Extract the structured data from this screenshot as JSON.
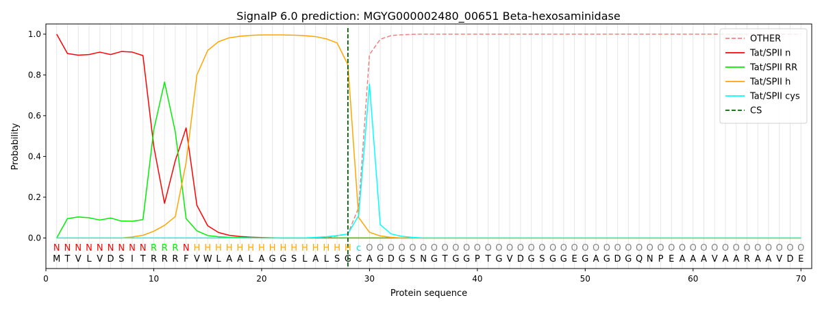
{
  "chart_data": {
    "type": "line",
    "title": "SignalP 6.0 prediction: MGYG000002480_00651 Beta-hexosaminidase",
    "xlabel": "Protein sequence",
    "ylabel": "Probability",
    "xlim": [
      0,
      71
    ],
    "ylim": [
      -0.15,
      1.05
    ],
    "xticks": [
      0,
      10,
      20,
      30,
      40,
      50,
      60,
      70
    ],
    "yticks": [
      0.0,
      0.2,
      0.4,
      0.6,
      0.8,
      1.0
    ],
    "xtick_labels": [
      "0",
      "10",
      "20",
      "30",
      "40",
      "50",
      "60",
      "70"
    ],
    "ytick_labels": [
      "0.0",
      "0.2",
      "0.4",
      "0.6",
      "0.8",
      "1.0"
    ],
    "grid": "vertical lines at each residue",
    "legend": "top-right",
    "sequence": [
      "M",
      "T",
      "V",
      "L",
      "V",
      "D",
      "S",
      "I",
      "T",
      "R",
      "R",
      "R",
      "F",
      "V",
      "W",
      "L",
      "A",
      "A",
      "L",
      "A",
      "G",
      "G",
      "S",
      "L",
      "A",
      "L",
      "S",
      "G",
      "C",
      "A",
      "G",
      "D",
      "G",
      "S",
      "N",
      "G",
      "T",
      "G",
      "G",
      "P",
      "T",
      "G",
      "V",
      "D",
      "G",
      "S",
      "G",
      "G",
      "E",
      "G",
      "A",
      "G",
      "D",
      "G",
      "Q",
      "N",
      "P",
      "E",
      "A",
      "A",
      "A",
      "V",
      "A",
      "A",
      "R",
      "A",
      "A",
      "V",
      "D",
      "E"
    ],
    "labels": [
      "N",
      "N",
      "N",
      "N",
      "N",
      "N",
      "N",
      "N",
      "N",
      "R",
      "R",
      "R",
      "N",
      "H",
      "H",
      "H",
      "H",
      "H",
      "H",
      "H",
      "H",
      "H",
      "H",
      "H",
      "H",
      "H",
      "H",
      "H",
      "c",
      "O",
      "O",
      "O",
      "O",
      "O",
      "O",
      "O",
      "O",
      "O",
      "O",
      "O",
      "O",
      "O",
      "O",
      "O",
      "O",
      "O",
      "O",
      "O",
      "O",
      "O",
      "O",
      "O",
      "O",
      "O",
      "O",
      "O",
      "O",
      "O",
      "O",
      "O",
      "O",
      "O",
      "O",
      "O",
      "O",
      "O",
      "O",
      "O",
      "O",
      "O"
    ],
    "label_colors": {
      "N": "#ff0000",
      "R": "#00ee00",
      "H": "#ffa500",
      "c": "#00e5e5",
      "O": "#808080"
    },
    "cs_position": 28,
    "series": [
      {
        "name": "OTHER",
        "color": "#f08080",
        "dash": true,
        "values": [
          0,
          0,
          0,
          0,
          0,
          0,
          0,
          0,
          0,
          0,
          0,
          0,
          0,
          0,
          0,
          0,
          0,
          0,
          0,
          0,
          0,
          0,
          0,
          0,
          0,
          0,
          0.01,
          0.02,
          0.15,
          0.9,
          0.975,
          0.993,
          0.997,
          0.999,
          1,
          1,
          1,
          1,
          1,
          1,
          1,
          1,
          1,
          1,
          1,
          1,
          1,
          1,
          1,
          1,
          1,
          1,
          1,
          1,
          1,
          1,
          1,
          1,
          1,
          1,
          1,
          1,
          1,
          1,
          1,
          1,
          1,
          1,
          1,
          1
        ]
      },
      {
        "name": "Tat/SPII n",
        "color": "#ff0000",
        "dash": false,
        "values": [
          1.0,
          0.905,
          0.897,
          0.9,
          0.912,
          0.9,
          0.915,
          0.912,
          0.895,
          0.45,
          0.17,
          0.38,
          0.54,
          0.16,
          0.06,
          0.027,
          0.013,
          0.007,
          0.004,
          0.002,
          0.001,
          0,
          0,
          0,
          0,
          0,
          0,
          0,
          0,
          0,
          0,
          0,
          0,
          0,
          0,
          0,
          0,
          0,
          0,
          0,
          0,
          0,
          0,
          0,
          0,
          0,
          0,
          0,
          0,
          0,
          0,
          0,
          0,
          0,
          0,
          0,
          0,
          0,
          0,
          0,
          0,
          0,
          0,
          0,
          0,
          0,
          0,
          0,
          0,
          0
        ]
      },
      {
        "name": "Tat/SPII RR",
        "color": "#00ee00",
        "dash": false,
        "values": [
          0,
          0.095,
          0.103,
          0.099,
          0.088,
          0.098,
          0.083,
          0.082,
          0.09,
          0.53,
          0.765,
          0.52,
          0.095,
          0.035,
          0.012,
          0.006,
          0.003,
          0.002,
          0.001,
          0,
          0,
          0,
          0,
          0,
          0,
          0,
          0,
          0,
          0,
          0,
          0,
          0,
          0,
          0,
          0,
          0,
          0,
          0,
          0,
          0,
          0,
          0,
          0,
          0,
          0,
          0,
          0,
          0,
          0,
          0,
          0,
          0,
          0,
          0,
          0,
          0,
          0,
          0,
          0,
          0,
          0,
          0,
          0,
          0,
          0,
          0,
          0,
          0,
          0,
          0
        ]
      },
      {
        "name": "Tat/SPII h",
        "color": "#ffa500",
        "dash": false,
        "values": [
          0,
          0,
          0,
          0,
          0,
          0,
          0,
          0.005,
          0.013,
          0.033,
          0.062,
          0.105,
          0.37,
          0.8,
          0.92,
          0.963,
          0.982,
          0.99,
          0.994,
          0.996,
          0.996,
          0.996,
          0.995,
          0.993,
          0.988,
          0.977,
          0.957,
          0.85,
          0.1,
          0.028,
          0.01,
          0.003,
          0,
          0,
          0,
          0,
          0,
          0,
          0,
          0,
          0,
          0,
          0,
          0,
          0,
          0,
          0,
          0,
          0,
          0,
          0,
          0,
          0,
          0,
          0,
          0,
          0,
          0,
          0,
          0,
          0,
          0,
          0,
          0,
          0,
          0,
          0,
          0,
          0,
          0
        ]
      },
      {
        "name": "Tat/SPII cys",
        "color": "#00ffff",
        "dash": false,
        "values": [
          0,
          0,
          0,
          0,
          0,
          0,
          0,
          0,
          0,
          0,
          0,
          0,
          0,
          0,
          0,
          0,
          0,
          0,
          0,
          0,
          0,
          0,
          0,
          0,
          0.003,
          0.006,
          0.012,
          0.02,
          0.11,
          0.755,
          0.065,
          0.02,
          0.008,
          0.003,
          0,
          0,
          0,
          0,
          0,
          0,
          0,
          0,
          0,
          0,
          0,
          0,
          0,
          0,
          0,
          0,
          0,
          0,
          0,
          0,
          0,
          0,
          0,
          0,
          0,
          0,
          0,
          0,
          0,
          0,
          0,
          0,
          0,
          0,
          0,
          0
        ]
      }
    ],
    "cs_legend_label": "CS",
    "cs_color": "#006400"
  }
}
